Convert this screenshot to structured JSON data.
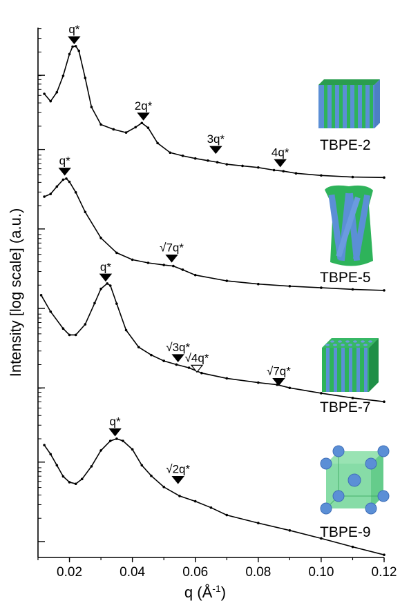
{
  "chart_data": {
    "type": "scatter",
    "title": "",
    "xlabel": "q (Å⁻¹)",
    "ylabel": "Intensity [log scale] (a.u.)",
    "xlim": [
      0.01,
      0.12
    ],
    "x_ticks": [
      "0.02",
      "0.04",
      "0.06",
      "0.08",
      "0.10",
      "0.12"
    ],
    "y_scale": "log",
    "y_values_unit": "relative log intensity (arbitrary, curves vertically offset; 0 = bottom of plot, 100 = top)",
    "grid": false,
    "series": [
      {
        "name": "TBPE-2",
        "x": [
          0.012,
          0.014,
          0.016,
          0.018,
          0.02,
          0.021,
          0.022,
          0.023,
          0.025,
          0.027,
          0.03,
          0.034,
          0.038,
          0.041,
          0.043,
          0.045,
          0.048,
          0.052,
          0.056,
          0.06,
          0.064,
          0.067,
          0.07,
          0.075,
          0.08,
          0.085,
          0.088,
          0.092,
          0.1,
          0.11,
          0.12
        ],
        "y": [
          87.5,
          86.1,
          87.8,
          90.9,
          95.0,
          96.4,
          96.5,
          95.6,
          90.5,
          85.0,
          81.7,
          80.8,
          80.2,
          81.2,
          82.0,
          81.1,
          78.2,
          76.4,
          75.8,
          75.3,
          74.9,
          74.6,
          74.2,
          73.9,
          73.6,
          73.1,
          72.9,
          72.5,
          72.1,
          71.8,
          71.7
        ]
      },
      {
        "name": "TBPE-5",
        "x": [
          0.012,
          0.014,
          0.016,
          0.018,
          0.019,
          0.02,
          0.022,
          0.025,
          0.03,
          0.035,
          0.04,
          0.045,
          0.05,
          0.053,
          0.056,
          0.06,
          0.07,
          0.08,
          0.09,
          0.1,
          0.11,
          0.12
        ],
        "y": [
          68.1,
          68.6,
          70.0,
          71.3,
          71.5,
          70.9,
          68.9,
          65.2,
          60.3,
          57.5,
          56.2,
          55.6,
          55.2,
          55.0,
          54.3,
          53.3,
          52.2,
          51.6,
          51.2,
          50.9,
          50.6,
          50.4
        ]
      },
      {
        "name": "TBPE-7",
        "x": [
          0.011,
          0.014,
          0.018,
          0.02,
          0.022,
          0.025,
          0.028,
          0.03,
          0.032,
          0.033,
          0.035,
          0.038,
          0.042,
          0.046,
          0.05,
          0.054,
          0.058,
          0.062,
          0.07,
          0.08,
          0.086,
          0.09,
          0.1,
          0.11,
          0.12
        ],
        "y": [
          49.5,
          46.4,
          43.2,
          42.0,
          42.0,
          44.0,
          48.0,
          50.7,
          51.7,
          51.3,
          47.9,
          42.9,
          39.7,
          38.2,
          37.1,
          36.4,
          35.8,
          34.8,
          33.8,
          33.0,
          32.6,
          32.0,
          31.0,
          30.1,
          29.4
        ]
      },
      {
        "name": "TBPE-9",
        "x": [
          0.012,
          0.014,
          0.016,
          0.018,
          0.02,
          0.022,
          0.024,
          0.027,
          0.03,
          0.033,
          0.035,
          0.037,
          0.04,
          0.043,
          0.046,
          0.05,
          0.055,
          0.06,
          0.065,
          0.07,
          0.08,
          0.09,
          0.1,
          0.11,
          0.12
        ],
        "y": [
          21.2,
          19.5,
          17.4,
          15.3,
          14.2,
          13.9,
          14.8,
          17.2,
          20.2,
          22.0,
          22.4,
          22.0,
          20.4,
          17.4,
          15.4,
          13.3,
          11.6,
          10.6,
          9.4,
          8.0,
          6.5,
          5.1,
          3.6,
          2.0,
          0.5
        ]
      }
    ],
    "annotations": [
      {
        "series": "TBPE-2",
        "text": "q*",
        "x": 0.0215,
        "y": 97.5,
        "marker": "filled"
      },
      {
        "series": "TBPE-2",
        "text": "2q*",
        "x": 0.0435,
        "y": 83.1,
        "marker": "filled"
      },
      {
        "series": "TBPE-2",
        "text": "3q*",
        "x": 0.0665,
        "y": 76.8,
        "marker": "filled"
      },
      {
        "series": "TBPE-2",
        "text": "4q*",
        "x": 0.087,
        "y": 74.3,
        "marker": "filled"
      },
      {
        "series": "TBPE-5",
        "text": "q*",
        "x": 0.0185,
        "y": 72.7,
        "marker": "filled"
      },
      {
        "series": "TBPE-5",
        "text": "√7q*",
        "x": 0.0525,
        "y": 56.3,
        "marker": "filled"
      },
      {
        "series": "TBPE-7",
        "text": "q*",
        "x": 0.0315,
        "y": 52.7,
        "marker": "filled"
      },
      {
        "series": "TBPE-7",
        "text": "√3q*",
        "x": 0.0545,
        "y": 37.5,
        "marker": "filled"
      },
      {
        "series": "TBPE-7",
        "text": "√4q*",
        "x": 0.0605,
        "y": 35.5,
        "marker": "open"
      },
      {
        "series": "TBPE-7",
        "text": "√7q*",
        "x": 0.0865,
        "y": 33.0,
        "marker": "filled"
      },
      {
        "series": "TBPE-9",
        "text": "q*",
        "x": 0.0345,
        "y": 23.5,
        "marker": "filled"
      },
      {
        "series": "TBPE-9",
        "text": "√2q*",
        "x": 0.0545,
        "y": 14.5,
        "marker": "filled"
      }
    ],
    "sample_labels": [
      "TBPE-2",
      "TBPE-5",
      "TBPE-7",
      "TBPE-9"
    ],
    "inset_icons": [
      {
        "series": "TBPE-2",
        "name": "lamellae-icon"
      },
      {
        "series": "TBPE-5",
        "name": "cylinders-bundle-icon"
      },
      {
        "series": "TBPE-7",
        "name": "hexagonal-cylinders-icon"
      },
      {
        "series": "TBPE-9",
        "name": "bcc-spheres-icon"
      }
    ],
    "colors": {
      "data": "#000000",
      "blue": "#5b8fd6",
      "green": "#2eb35a",
      "light_green": "#5fd08a"
    }
  }
}
